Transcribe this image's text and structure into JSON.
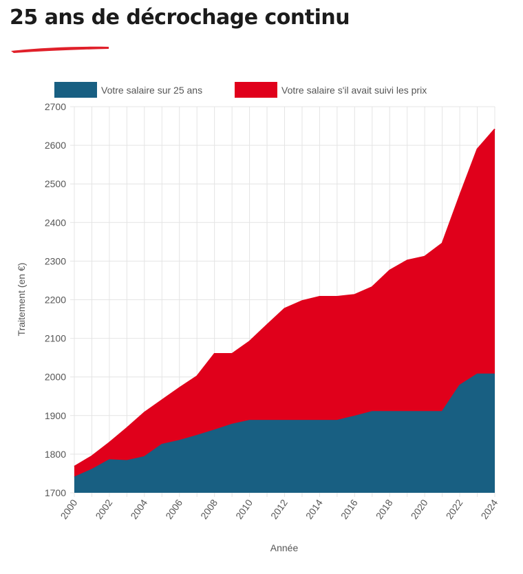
{
  "page": {
    "title": "25 ans de décrochage continu",
    "accent_color": "#e0202a"
  },
  "chart_data": {
    "type": "area",
    "stacked": false,
    "title": "",
    "xlabel": "Année",
    "ylabel": "Traitement (en €)",
    "xlim": [
      2000,
      2024
    ],
    "ylim": [
      1700,
      2700
    ],
    "x_ticks": [
      "2000",
      "2002",
      "2004",
      "2006",
      "2008",
      "2010",
      "2012",
      "2014",
      "2016",
      "2018",
      "2020",
      "2022",
      "2024"
    ],
    "y_ticks": [
      "1700",
      "1800",
      "1900",
      "2000",
      "2100",
      "2200",
      "2300",
      "2400",
      "2500",
      "2600",
      "2700"
    ],
    "grid": true,
    "legend": "top",
    "x": [
      2000,
      2001,
      2002,
      2003,
      2004,
      2005,
      2006,
      2007,
      2008,
      2009,
      2010,
      2011,
      2012,
      2013,
      2014,
      2015,
      2016,
      2017,
      2018,
      2019,
      2020,
      2021,
      2022,
      2023,
      2024
    ],
    "series": [
      {
        "name": "Votre salaire sur 25 ans",
        "color": "#185f82",
        "values": [
          1740,
          1760,
          1785,
          1783,
          1793,
          1825,
          1835,
          1848,
          1862,
          1877,
          1887,
          1887,
          1887,
          1887,
          1887,
          1887,
          1898,
          1910,
          1910,
          1910,
          1910,
          1910,
          1978,
          2007,
          2007
        ]
      },
      {
        "name": "Votre salaire s'il avait suivi les prix",
        "color": "#e0001b",
        "values": [
          1768,
          1795,
          1830,
          1868,
          1908,
          1940,
          1972,
          2002,
          2060,
          2060,
          2092,
          2135,
          2177,
          2197,
          2208,
          2208,
          2213,
          2233,
          2276,
          2302,
          2312,
          2346,
          2470,
          2590,
          2642
        ]
      }
    ]
  }
}
